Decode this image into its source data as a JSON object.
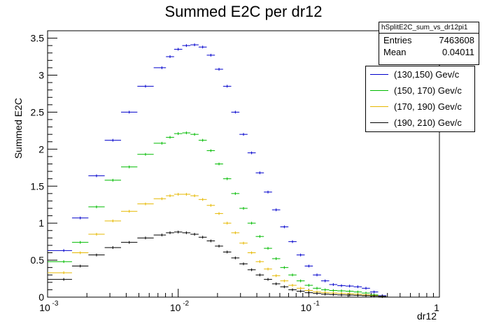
{
  "chart_data": {
    "type": "scatter",
    "title": "Summed E2C per dr12",
    "xlabel": "dr12",
    "ylabel": "Summed E2C",
    "xscale": "log",
    "xlim": [
      0.001,
      1
    ],
    "ylim": [
      0,
      3.6
    ],
    "x_tick_labels": [
      "10",
      "10",
      "10",
      "1"
    ],
    "x_tick_exponents": [
      "-3",
      "-2",
      "-1",
      ""
    ],
    "y_ticks": [
      0,
      0.5,
      1,
      1.5,
      2,
      2.5,
      3,
      3.5
    ],
    "y_tick_labels": [
      "0",
      "0.5",
      "1",
      "1.5",
      "2",
      "2.5",
      "3",
      "3.5"
    ],
    "stats": {
      "name": "hSplitE2C_sum_vs_dr12pi1",
      "entries_label": "Entries",
      "entries": "7463608",
      "mean_label": "Mean",
      "mean": "0.04011"
    },
    "legend_position": "top-right",
    "x": [
      0.00133,
      0.00178,
      0.00237,
      0.00316,
      0.00422,
      0.00562,
      0.0075,
      0.00866,
      0.01,
      0.01155,
      0.01334,
      0.0154,
      0.01778,
      0.02054,
      0.02371,
      0.02738,
      0.03162,
      0.0365,
      0.04217,
      0.0487,
      0.05623,
      0.06494,
      0.075,
      0.0866,
      0.1,
      0.1155,
      0.1334,
      0.154,
      0.1778,
      0.2054,
      0.2371,
      0.2738,
      0.3162,
      0.3652
    ],
    "series": [
      {
        "name": "(130,150) Gev/c",
        "color": "#0000cc",
        "values": [
          0.63,
          1.07,
          1.64,
          2.12,
          2.5,
          2.85,
          3.1,
          3.25,
          3.35,
          3.4,
          3.41,
          3.38,
          3.27,
          3.08,
          2.85,
          2.5,
          2.2,
          1.95,
          1.68,
          1.42,
          1.18,
          0.95,
          0.75,
          0.57,
          0.42,
          0.3,
          0.22,
          0.17,
          0.155,
          0.15,
          0.14,
          0.12,
          0.07,
          0.02
        ]
      },
      {
        "name": "(150, 170) Gev/c",
        "color": "#00bb00",
        "values": [
          0.48,
          0.74,
          1.22,
          1.58,
          1.76,
          1.93,
          2.08,
          2.16,
          2.21,
          2.22,
          2.2,
          2.12,
          1.98,
          1.8,
          1.6,
          1.4,
          1.2,
          1.0,
          0.82,
          0.66,
          0.52,
          0.4,
          0.3,
          0.22,
          0.16,
          0.12,
          0.1,
          0.09,
          0.085,
          0.08,
          0.07,
          0.055,
          0.03,
          0.01
        ]
      },
      {
        "name": "(170, 190) Gev/c",
        "color": "#e6b800",
        "values": [
          0.33,
          0.6,
          0.85,
          1.03,
          1.16,
          1.26,
          1.33,
          1.37,
          1.39,
          1.39,
          1.37,
          1.32,
          1.24,
          1.13,
          1.0,
          0.87,
          0.73,
          0.6,
          0.48,
          0.38,
          0.29,
          0.22,
          0.16,
          0.12,
          0.09,
          0.07,
          0.06,
          0.055,
          0.05,
          0.045,
          0.04,
          0.03,
          0.02,
          0.01
        ]
      },
      {
        "name": "(190, 210) Gev/c",
        "color": "#000000",
        "values": [
          0.24,
          0.42,
          0.57,
          0.67,
          0.74,
          0.8,
          0.84,
          0.87,
          0.88,
          0.87,
          0.85,
          0.81,
          0.76,
          0.69,
          0.61,
          0.53,
          0.45,
          0.37,
          0.3,
          0.24,
          0.18,
          0.14,
          0.1,
          0.08,
          0.06,
          0.05,
          0.04,
          0.035,
          0.03,
          0.028,
          0.025,
          0.02,
          0.015,
          0.008
        ]
      }
    ]
  }
}
